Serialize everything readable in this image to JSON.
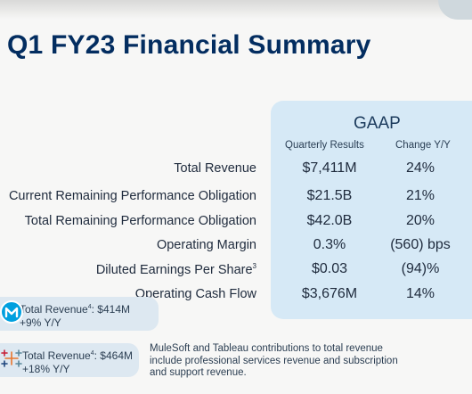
{
  "title": "Q1 FY23 Financial Summary",
  "gaap": {
    "header": "GAAP",
    "col_quarterly": "Quarterly Results",
    "col_change": "Change Y/Y"
  },
  "rows": [
    {
      "label": "Total Revenue",
      "sup": "",
      "value": "$7,411M",
      "change": "24%"
    },
    {
      "label": "Current Remaining Performance Obligation",
      "sup": "",
      "value": "$21.5B",
      "change": "21%"
    },
    {
      "label": "Total Remaining Performance Obligation",
      "sup": "",
      "value": "$42.0B",
      "change": "20%"
    },
    {
      "label": "Operating Margin",
      "sup": "",
      "value": "0.3%",
      "change": "(560) bps"
    },
    {
      "label": "Diluted Earnings Per Share",
      "sup": "3",
      "value": "$0.03",
      "change": "(94)%"
    },
    {
      "label": "Operating Cash Flow",
      "sup": "",
      "value": "$3,676M",
      "change": "14%"
    }
  ],
  "mulesoft": {
    "line1_prefix": "Total Revenue",
    "line1_sup": "4",
    "line1_value": ": $414M",
    "line2": "+9% Y/Y",
    "icon": "mulesoft-logo-icon"
  },
  "tableau": {
    "line1_prefix": "Total Revenue",
    "line1_sup": "4",
    "line1_value": ": $464M",
    "line2": "+18% Y/Y",
    "icon": "tableau-logo-icon"
  },
  "note": "MuleSoft and Tableau contributions to total revenue include professional services revenue and subscription and support revenue."
}
